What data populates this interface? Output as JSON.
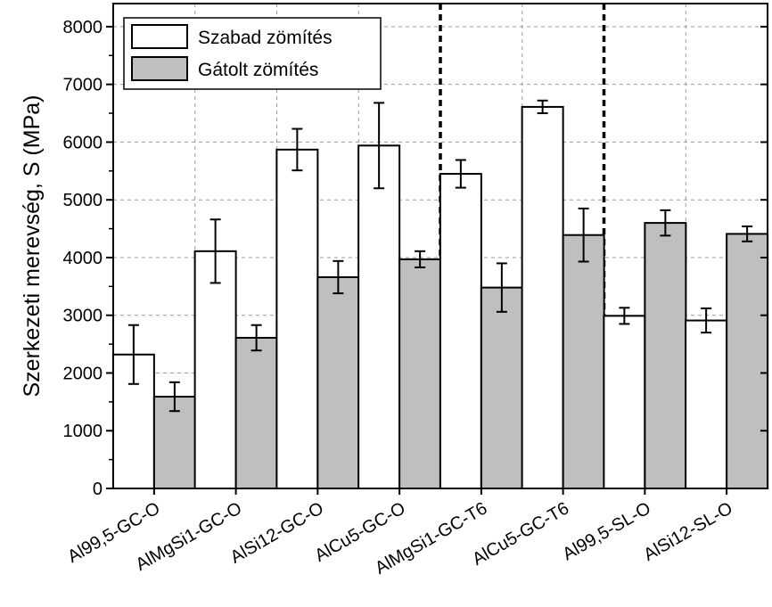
{
  "chart_data": {
    "type": "bar",
    "ylabel": "Szerkezeti merevség, S (MPa)",
    "ylim": [
      0,
      8400
    ],
    "yticks": [
      0,
      1000,
      2000,
      3000,
      4000,
      5000,
      6000,
      7000,
      8000
    ],
    "categories": [
      "Al99,5-GC-O",
      "AlMgSi1-GC-O",
      "AlSi12-GC-O",
      "AlCu5-GC-O",
      "AlMgSi1-GC-T6",
      "AlCu5-GC-T6",
      "Al99,5-SL-O",
      "AlSi12-SL-O"
    ],
    "series": [
      {
        "name": "Szabad zömítés",
        "color": "#ffffff",
        "values": [
          2320,
          4110,
          5870,
          5940,
          5450,
          6610,
          2990,
          2910
        ],
        "errors": [
          510,
          550,
          360,
          740,
          240,
          110,
          140,
          210
        ]
      },
      {
        "name": "Gátolt zömítés",
        "color": "#bfbfbf",
        "values": [
          1590,
          2610,
          3660,
          3970,
          3480,
          4390,
          4600,
          4410
        ],
        "errors": [
          250,
          220,
          280,
          140,
          420,
          460,
          220,
          130
        ]
      }
    ],
    "group_separators_after": [
      4,
      6
    ],
    "grid": true,
    "legend_position": "top-left"
  }
}
